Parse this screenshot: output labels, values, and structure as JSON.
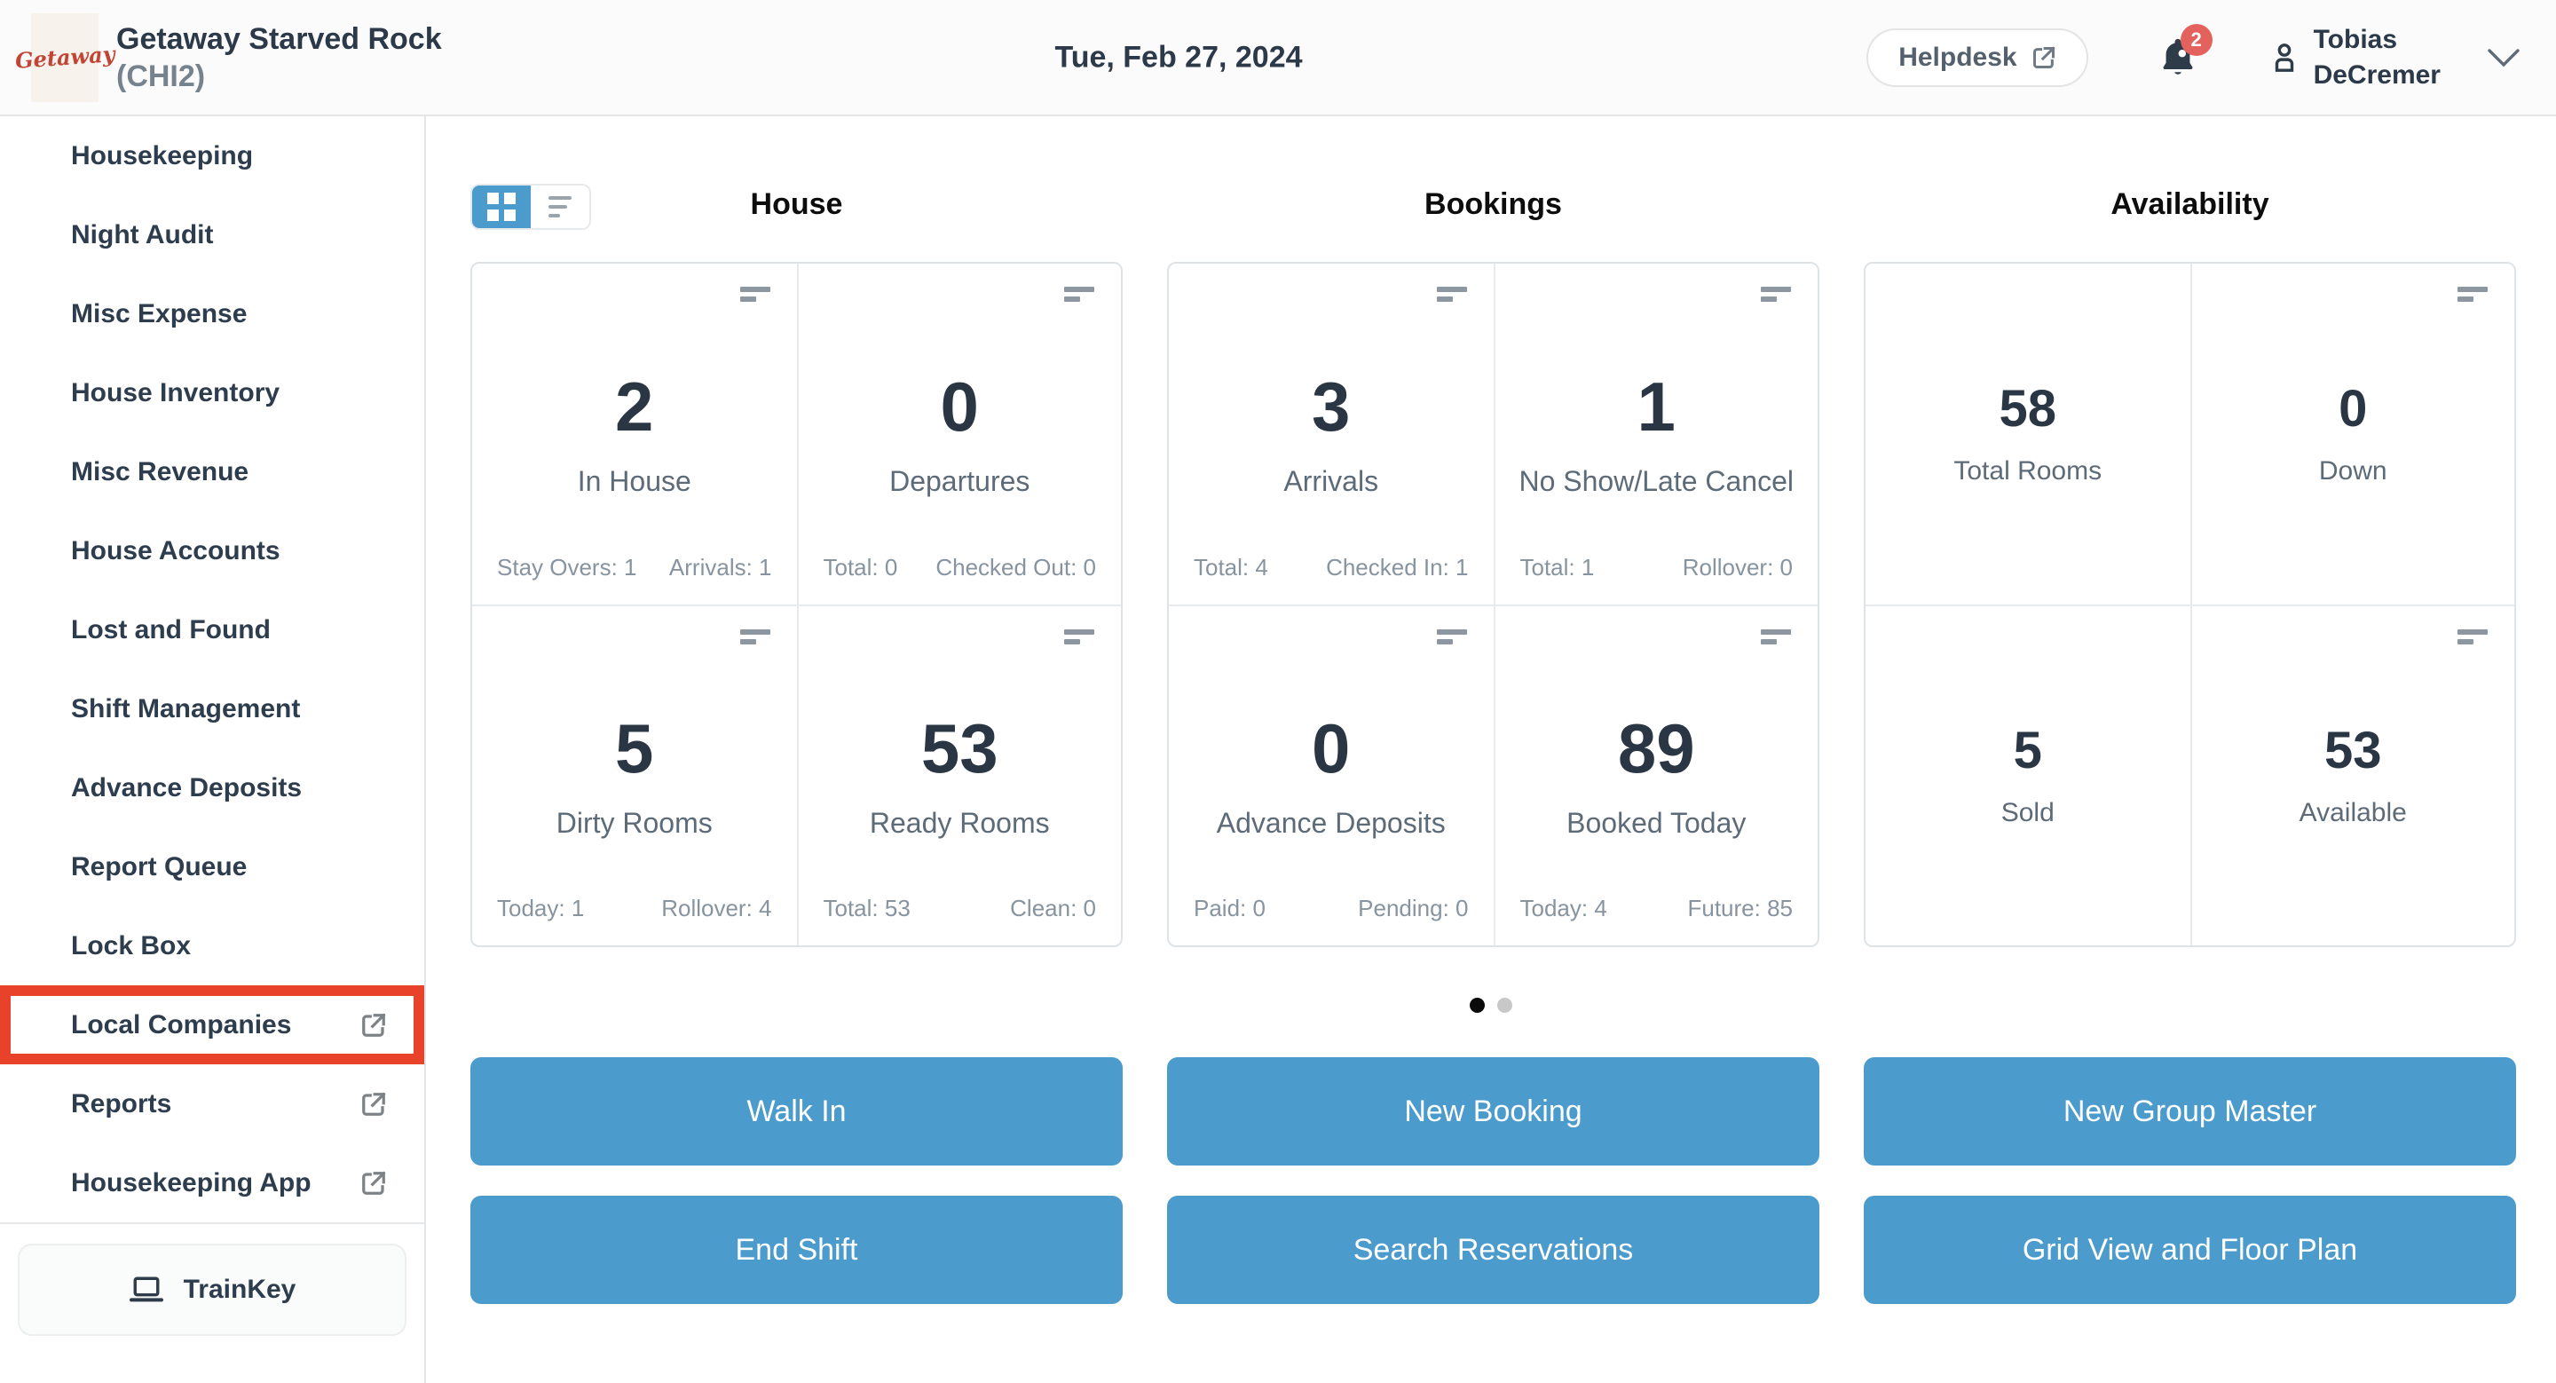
{
  "header": {
    "logo_text": "Getaway",
    "property_name": "Getaway Starved Rock",
    "property_code": "(CHI2)",
    "date": "Tue, Feb 27, 2024",
    "helpdesk_label": "Helpdesk",
    "notification_count": "2",
    "user_first_name": "Tobias",
    "user_last_name": "DeCremer"
  },
  "sidebar": {
    "items": [
      {
        "label": "Housekeeping",
        "external": false,
        "highlighted": false
      },
      {
        "label": "Night Audit",
        "external": false,
        "highlighted": false
      },
      {
        "label": "Misc Expense",
        "external": false,
        "highlighted": false
      },
      {
        "label": "House Inventory",
        "external": false,
        "highlighted": false
      },
      {
        "label": "Misc Revenue",
        "external": false,
        "highlighted": false
      },
      {
        "label": "House Accounts",
        "external": false,
        "highlighted": false
      },
      {
        "label": "Lost and Found",
        "external": false,
        "highlighted": false
      },
      {
        "label": "Shift Management",
        "external": false,
        "highlighted": false
      },
      {
        "label": "Advance Deposits",
        "external": false,
        "highlighted": false
      },
      {
        "label": "Report Queue",
        "external": false,
        "highlighted": false
      },
      {
        "label": "Lock Box",
        "external": false,
        "highlighted": false
      },
      {
        "label": "Local Companies",
        "external": true,
        "highlighted": true
      },
      {
        "label": "Reports",
        "external": true,
        "highlighted": false
      },
      {
        "label": "Housekeeping App",
        "external": true,
        "highlighted": false
      }
    ],
    "trainkey_label": "TrainKey"
  },
  "dashboard": {
    "columns": [
      {
        "title": "House",
        "compact": false,
        "cards": [
          {
            "value": "2",
            "label": "In House",
            "icon": true,
            "stats": [
              {
                "label": "Stay Overs",
                "value": "1"
              },
              {
                "label": "Arrivals",
                "value": "1"
              }
            ]
          },
          {
            "value": "0",
            "label": "Departures",
            "icon": true,
            "stats": [
              {
                "label": "Total",
                "value": "0"
              },
              {
                "label": "Checked Out",
                "value": "0"
              }
            ]
          },
          {
            "value": "5",
            "label": "Dirty Rooms",
            "icon": true,
            "stats": [
              {
                "label": "Today",
                "value": "1"
              },
              {
                "label": "Rollover",
                "value": "4"
              }
            ]
          },
          {
            "value": "53",
            "label": "Ready Rooms",
            "icon": true,
            "stats": [
              {
                "label": "Total",
                "value": "53"
              },
              {
                "label": "Clean",
                "value": "0"
              }
            ]
          }
        ],
        "buttons": [
          "Walk In",
          "End Shift"
        ]
      },
      {
        "title": "Bookings",
        "compact": false,
        "cards": [
          {
            "value": "3",
            "label": "Arrivals",
            "icon": true,
            "stats": [
              {
                "label": "Total",
                "value": "4"
              },
              {
                "label": "Checked In",
                "value": "1"
              }
            ]
          },
          {
            "value": "1",
            "label": "No Show/Late Cancel",
            "icon": true,
            "stats": [
              {
                "label": "Total",
                "value": "1"
              },
              {
                "label": "Rollover",
                "value": "0"
              }
            ]
          },
          {
            "value": "0",
            "label": "Advance Deposits",
            "icon": true,
            "stats": [
              {
                "label": "Paid",
                "value": "0"
              },
              {
                "label": "Pending",
                "value": "0"
              }
            ]
          },
          {
            "value": "89",
            "label": "Booked Today",
            "icon": true,
            "stats": [
              {
                "label": "Today",
                "value": "4"
              },
              {
                "label": "Future",
                "value": "85"
              }
            ]
          }
        ],
        "buttons": [
          "New Booking",
          "Search Reservations"
        ]
      },
      {
        "title": "Availability",
        "compact": true,
        "cards": [
          {
            "value": "58",
            "label": "Total Rooms",
            "icon": false,
            "stats": []
          },
          {
            "value": "0",
            "label": "Down",
            "icon": true,
            "stats": []
          },
          {
            "value": "5",
            "label": "Sold",
            "icon": false,
            "stats": []
          },
          {
            "value": "53",
            "label": "Available",
            "icon": true,
            "stats": []
          }
        ],
        "buttons": [
          "New Group Master",
          "Grid View and Floor Plan"
        ]
      }
    ],
    "pagination": {
      "count": 2,
      "active_index": 0
    }
  },
  "colors": {
    "accent_blue": "#4C9BCD",
    "highlight_red": "#E8432A",
    "badge_red": "#E4625D",
    "dark_text": "#2B3949",
    "muted_text": "#5D6B78",
    "stat_text": "#8794A0"
  }
}
